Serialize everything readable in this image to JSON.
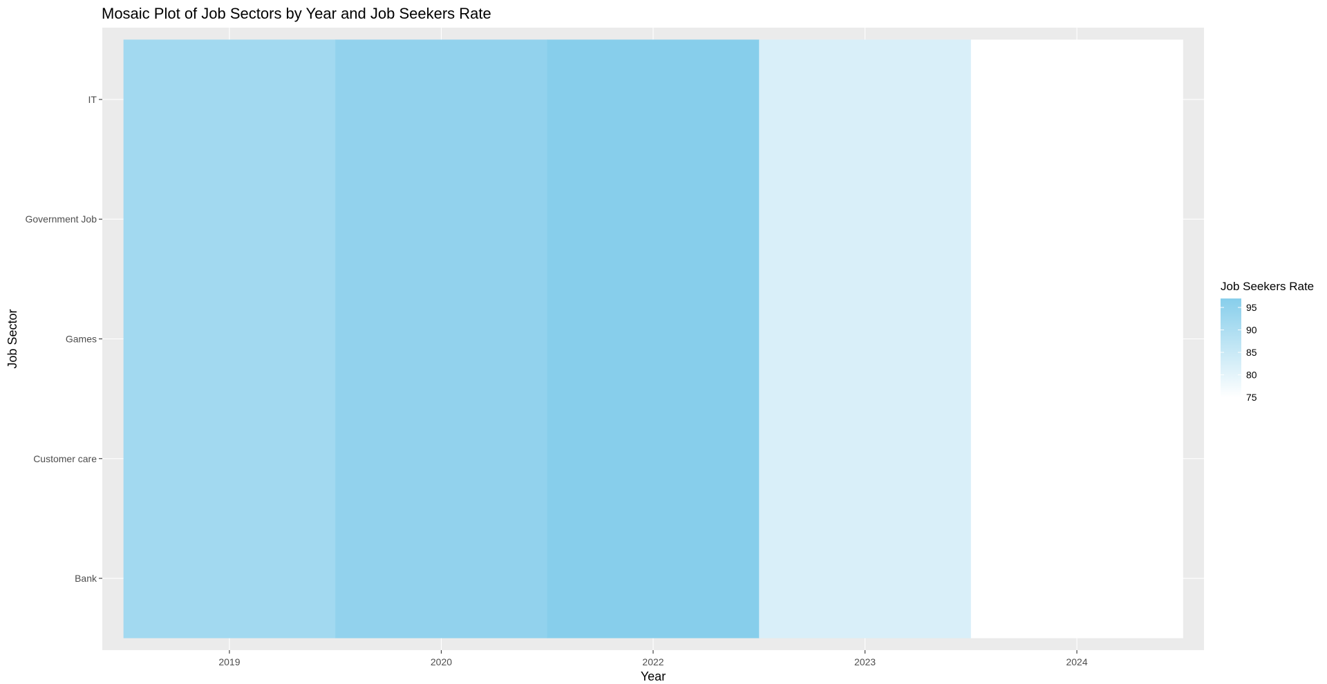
{
  "chart_data": {
    "type": "heatmap",
    "title": "Mosaic Plot of Job Sectors by Year and Job Seekers Rate",
    "xlabel": "Year",
    "ylabel": "Job Sector",
    "x_categories": [
      "2019",
      "2020",
      "2022",
      "2023",
      "2024"
    ],
    "y_categories": [
      "Bank",
      "Customer care",
      "Games",
      "Government Job",
      "IT"
    ],
    "columns": [
      {
        "x": "2019",
        "value": 92
      },
      {
        "x": "2020",
        "value": 95
      },
      {
        "x": "2022",
        "value": 97
      },
      {
        "x": "2023",
        "value": 82
      },
      {
        "x": "2024",
        "value": 75
      }
    ],
    "legend": {
      "title": "Job Seekers Rate",
      "breaks": [
        95,
        90,
        85,
        80,
        75
      ],
      "range": [
        75,
        97
      ],
      "low_color": "#ffffff",
      "high_color": "#87ceeb",
      "position": "right"
    },
    "grid": true,
    "panel_background": "#ebebeb"
  }
}
